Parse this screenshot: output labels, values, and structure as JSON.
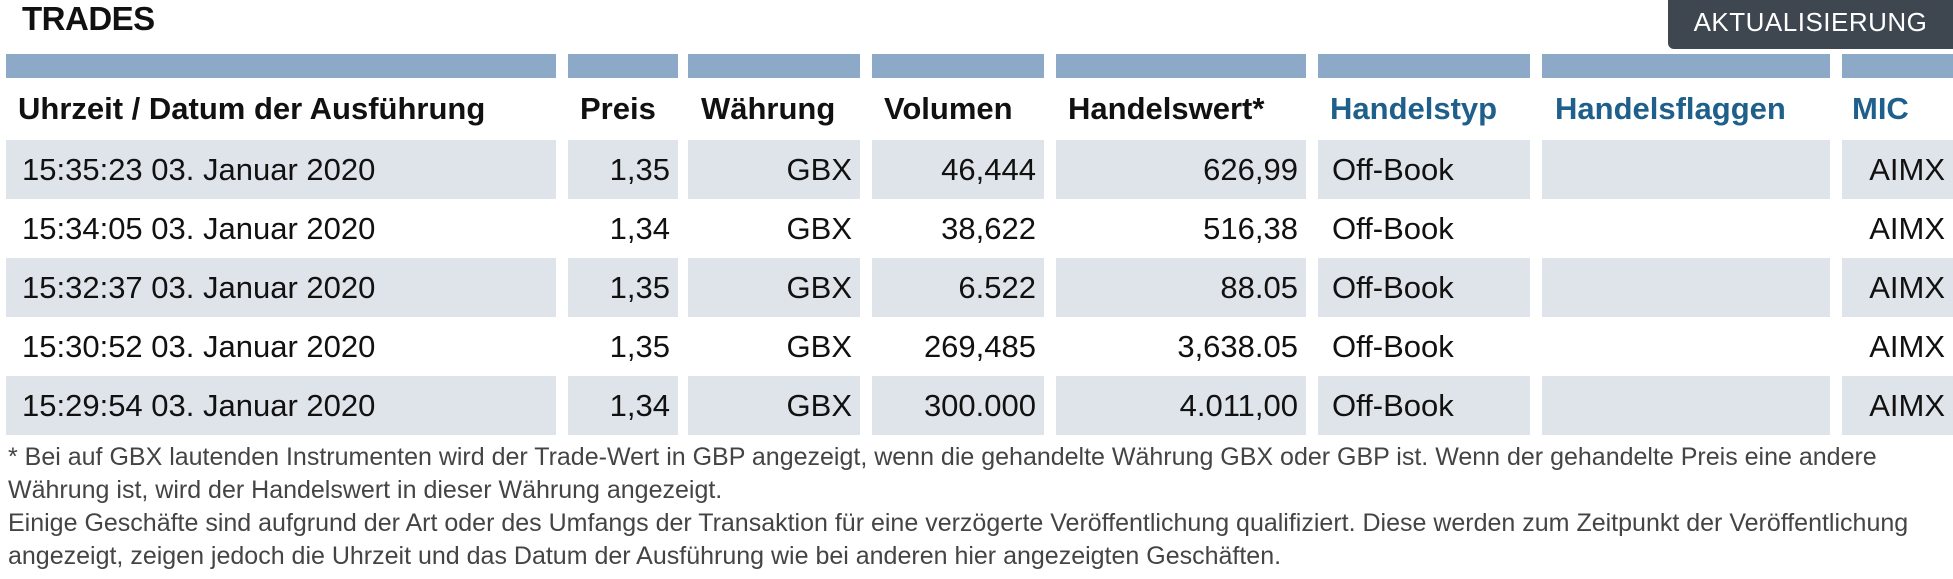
{
  "header": {
    "title": "TRADES",
    "refresh_label": "AKTUALISIERUNG"
  },
  "columns": [
    {
      "key": "time",
      "label": "Uhrzeit / Datum der Ausführung",
      "sortable": false
    },
    {
      "key": "price",
      "label": "Preis",
      "sortable": false
    },
    {
      "key": "currency",
      "label": "Währung",
      "sortable": false
    },
    {
      "key": "volume",
      "label": "Volumen",
      "sortable": false
    },
    {
      "key": "value",
      "label": "Handelswert*",
      "sortable": false
    },
    {
      "key": "type",
      "label": "Handelstyp",
      "sortable": true
    },
    {
      "key": "flags",
      "label": "Handelsflaggen",
      "sortable": true
    },
    {
      "key": "mic",
      "label": "MIC",
      "sortable": true
    }
  ],
  "rows": [
    {
      "time": "15:35:23 03. Januar 2020",
      "price": "1,35",
      "currency": "GBX",
      "volume": "46,444",
      "value": "626,99",
      "type": "Off-Book",
      "flags": "",
      "mic": "AIMX"
    },
    {
      "time": "15:34:05 03. Januar 2020",
      "price": "1,34",
      "currency": "GBX",
      "volume": "38,622",
      "value": "516,38",
      "type": "Off-Book",
      "flags": "",
      "mic": "AIMX"
    },
    {
      "time": "15:32:37 03. Januar 2020",
      "price": "1,35",
      "currency": "GBX",
      "volume": "6.522",
      "value": "88.05",
      "type": "Off-Book",
      "flags": "",
      "mic": "AIMX"
    },
    {
      "time": "15:30:52 03. Januar 2020",
      "price": "1,35",
      "currency": "GBX",
      "volume": "269,485",
      "value": "3,638.05",
      "type": "Off-Book",
      "flags": "",
      "mic": "AIMX"
    },
    {
      "time": "15:29:54 03. Januar 2020",
      "price": "1,34",
      "currency": "GBX",
      "volume": "300.000",
      "value": "4.011,00",
      "type": "Off-Book",
      "flags": "",
      "mic": "AIMX"
    }
  ],
  "footnotes": [
    "* Bei auf GBX lautenden Instrumenten wird der Trade-Wert in GBP angezeigt, wenn die gehandelte Währung GBX oder GBP ist. Wenn der gehandelte Preis eine andere Währung ist, wird der Handelswert in dieser Währung angezeigt.",
    "Einige Geschäfte sind aufgrund der Art oder des Umfangs der Transaktion für eine verzögerte Veröffentlichung qualifiziert. Diese werden zum Zeitpunkt der Veröffentlichung angezeigt, zeigen jedoch die Uhrzeit und das Datum der Ausführung wie bei anderen hier angezeigten Geschäften."
  ],
  "colors": {
    "header_bar": "#8caac8",
    "row_shade": "#dfe4ea",
    "link": "#1f5f8b",
    "button_bg": "#3e4650"
  }
}
